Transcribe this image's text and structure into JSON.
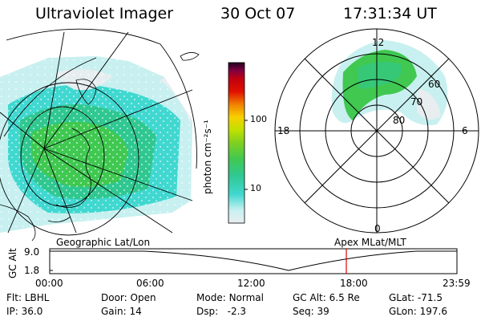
{
  "header": {
    "instrument": "Ultraviolet Imager",
    "date": "30 Oct 07",
    "time": "17:31:34 UT"
  },
  "colorbar": {
    "unit_label": "photon cm⁻²s⁻¹",
    "ticks": [
      "100",
      "10"
    ],
    "scale": "log",
    "colors": [
      "#e8eef0",
      "#c8f0f0",
      "#40d8d0",
      "#30c890",
      "#40c850",
      "#80d020",
      "#c0e000",
      "#f8d000",
      "#f08000",
      "#e01000",
      "#c00010",
      "#800040",
      "#200020"
    ]
  },
  "geographic_map": {
    "label": "Geographic Lat/Lon"
  },
  "polar_plot": {
    "label": "Apex  MLat/MLT",
    "mlt_labels": {
      "top": "12",
      "left": "18",
      "right": "6",
      "bottom": "0"
    },
    "lat_labels": [
      "60",
      "70",
      "80"
    ]
  },
  "altitude_chart": {
    "ylabel": "GC Alt",
    "y_ticks": [
      "9.0",
      "1.8"
    ],
    "x_ticks": [
      "00:00",
      "06:00",
      "12:00",
      "18:00",
      "23:59"
    ],
    "marker_time": "17:31",
    "marker_color": "#e00000"
  },
  "status": {
    "row1": [
      {
        "key": "Flt:",
        "value": "LBHL"
      },
      {
        "key": "Door:",
        "value": "Open"
      },
      {
        "key": "Mode:",
        "value": "Normal"
      },
      {
        "key": "GC Alt:",
        "value": "6.5 Re"
      },
      {
        "key": "GLat:",
        "value": "-71.5"
      }
    ],
    "row2": [
      {
        "key": "IP:",
        "value": "36.0"
      },
      {
        "key": "Gain:",
        "value": "14"
      },
      {
        "key": "Dsp:",
        "value": "  -2.3"
      },
      {
        "key": "Seq:",
        "value": "39"
      },
      {
        "key": "GLon:",
        "value": "197.6"
      }
    ]
  }
}
